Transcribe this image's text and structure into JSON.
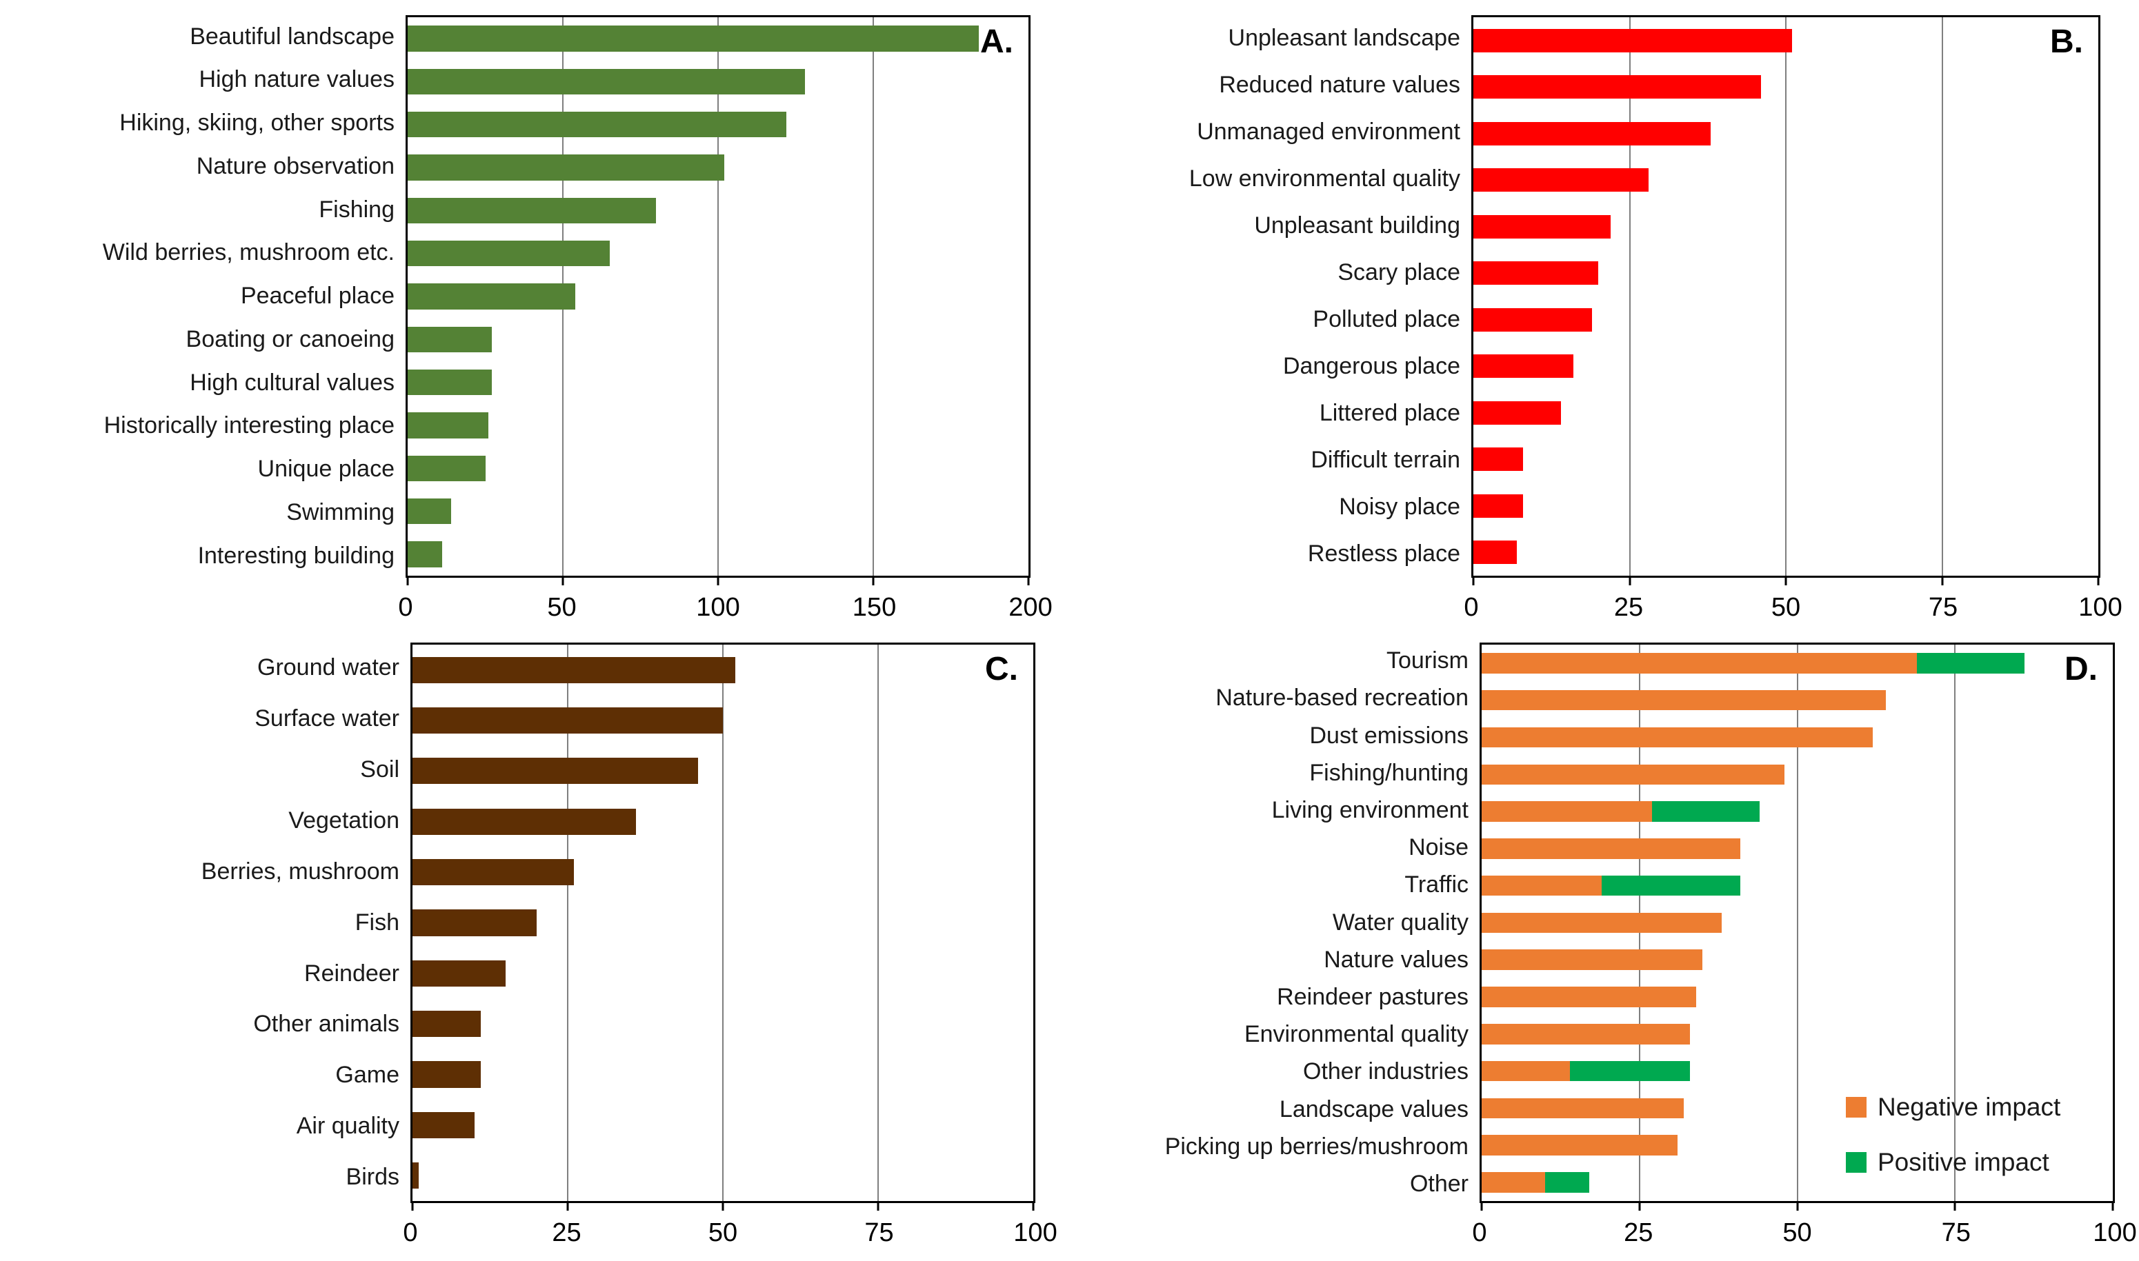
{
  "page": {
    "background": "#ffffff"
  },
  "styles": {
    "gridline_color": "#7f7f7f",
    "plot_border_color": "#000000",
    "text_color": "#1a1a1a"
  },
  "chart_data": [
    {
      "id": "A",
      "panel_letter": "A.",
      "type": "bar",
      "orientation": "horizontal",
      "bar_color": "#548235",
      "xlim": [
        0,
        200
      ],
      "x_ticks": [
        0,
        50,
        100,
        150,
        200
      ],
      "grid": true,
      "legend": null,
      "categories": [
        "Beautiful landscape",
        "High nature values",
        "Hiking, skiing, other sports",
        "Nature observation",
        "Fishing",
        "Wild berries, mushroom etc.",
        "Peaceful place",
        "Boating or canoeing",
        "High cultural values",
        "Historically interesting place",
        "Unique place",
        "Swimming",
        "Interesting building"
      ],
      "values": [
        184,
        128,
        122,
        102,
        80,
        65,
        54,
        27,
        27,
        26,
        25,
        14,
        11
      ]
    },
    {
      "id": "B",
      "panel_letter": "B.",
      "type": "bar",
      "orientation": "horizontal",
      "bar_color": "#ff0000",
      "xlim": [
        0,
        100
      ],
      "x_ticks": [
        0,
        25,
        50,
        75,
        100
      ],
      "grid": true,
      "legend": null,
      "categories": [
        "Unpleasant landscape",
        "Reduced nature values",
        "Unmanaged environment",
        "Low environmental quality",
        "Unpleasant building",
        "Scary place",
        "Polluted place",
        "Dangerous place",
        "Littered place",
        "Difficult terrain",
        "Noisy place",
        "Restless place"
      ],
      "values": [
        51,
        46,
        38,
        28,
        22,
        20,
        19,
        16,
        14,
        8,
        8,
        7
      ]
    },
    {
      "id": "C",
      "panel_letter": "C.",
      "type": "bar",
      "orientation": "horizontal",
      "bar_color": "#5e2f04",
      "xlim": [
        0,
        100
      ],
      "x_ticks": [
        0,
        25,
        50,
        75,
        100
      ],
      "grid": true,
      "legend": null,
      "categories": [
        "Ground water",
        "Surface water",
        "Soil",
        "Vegetation",
        "Berries, mushroom",
        "Fish",
        "Reindeer",
        "Other animals",
        "Game",
        "Air quality",
        "Birds"
      ],
      "values": [
        52,
        50,
        46,
        36,
        26,
        20,
        15,
        11,
        11,
        10,
        1
      ]
    },
    {
      "id": "D",
      "panel_letter": "D.",
      "type": "bar",
      "orientation": "horizontal",
      "stacked": true,
      "xlim": [
        0,
        100
      ],
      "x_ticks": [
        0,
        25,
        50,
        75,
        100
      ],
      "grid": true,
      "legend": {
        "position": "inside-lower-right",
        "entries": [
          "Negative impact",
          "Positive impact"
        ]
      },
      "categories": [
        "Tourism",
        "Nature-based recreation",
        "Dust emissions",
        "Fishing/hunting",
        "Living environment",
        "Noise",
        "Traffic",
        "Water quality",
        "Nature values",
        "Reindeer pastures",
        "Environmental quality",
        "Other industries",
        "Landscape values",
        "Picking up berries/mushroom",
        "Other"
      ],
      "series": [
        {
          "name": "Negative impact",
          "color": "#ed7d31",
          "values": [
            69,
            64,
            62,
            48,
            27,
            41,
            19,
            38,
            35,
            34,
            33,
            14,
            32,
            31,
            10
          ]
        },
        {
          "name": "Positive impact",
          "color": "#00a950",
          "values": [
            17,
            0,
            0,
            0,
            17,
            0,
            22,
            0,
            0,
            0,
            0,
            19,
            0,
            0,
            7
          ]
        }
      ]
    }
  ]
}
